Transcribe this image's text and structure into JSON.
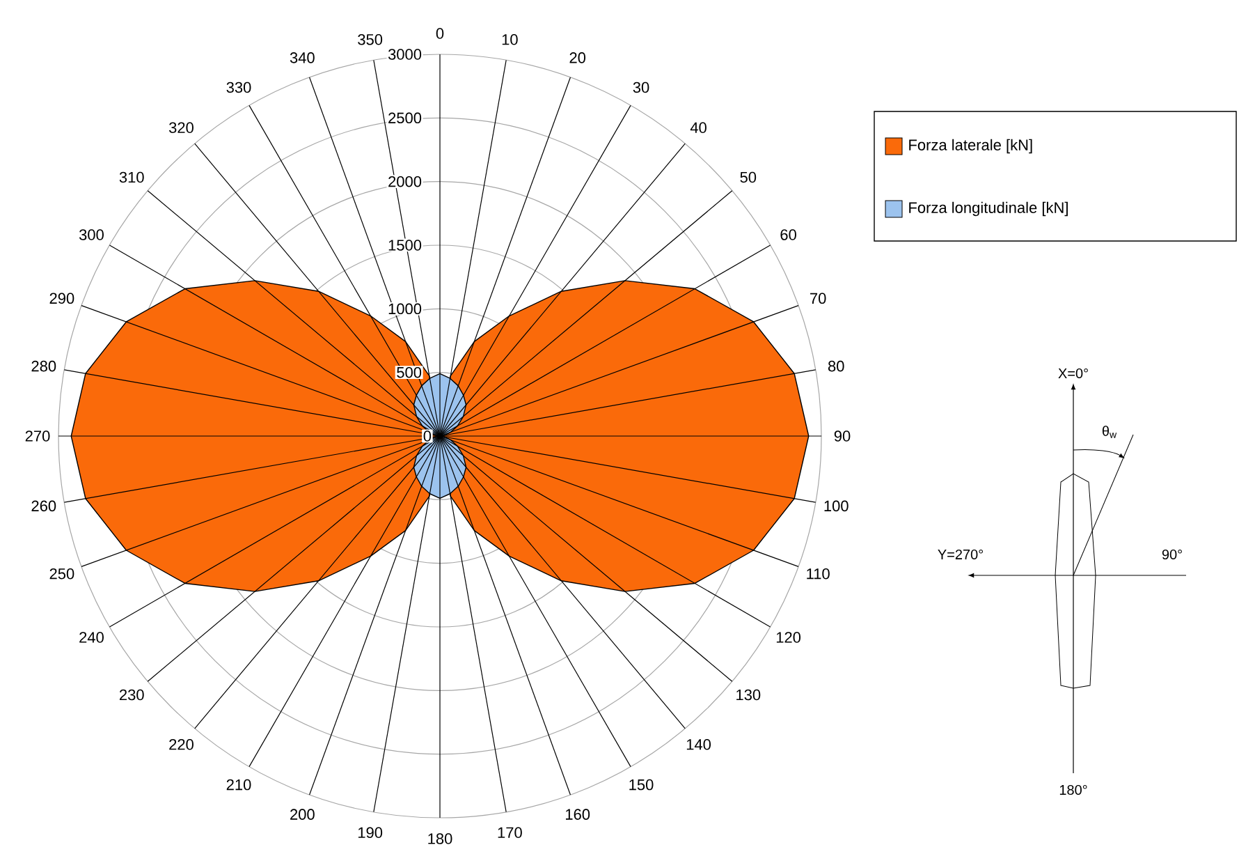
{
  "chart_data": {
    "type": "radar",
    "categories": [
      "0",
      "10",
      "20",
      "30",
      "40",
      "50",
      "60",
      "70",
      "80",
      "90",
      "100",
      "110",
      "120",
      "130",
      "140",
      "150",
      "160",
      "170",
      "180",
      "190",
      "200",
      "210",
      "220",
      "230",
      "240",
      "250",
      "260",
      "270",
      "280",
      "290",
      "300",
      "310",
      "320",
      "330",
      "340",
      "350"
    ],
    "series": [
      {
        "name": "Forza laterale [kN]",
        "color": "#fa6a0a",
        "values": [
          0,
          480,
          790,
          1090,
          1485,
          1900,
          2315,
          2625,
          2830,
          2900,
          2830,
          2625,
          2315,
          1900,
          1485,
          1090,
          790,
          480,
          0,
          480,
          790,
          1090,
          1485,
          1900,
          2315,
          2625,
          2830,
          2900,
          2830,
          2625,
          2315,
          1900,
          1485,
          1090,
          790,
          480
        ]
      },
      {
        "name": "Forza longitudinale [kN]",
        "color": "#9cc3ee",
        "values": [
          490,
          460,
          420,
          370,
          320,
          240,
          160,
          90,
          40,
          0,
          40,
          90,
          160,
          240,
          320,
          370,
          420,
          460,
          490,
          460,
          420,
          370,
          320,
          240,
          160,
          90,
          40,
          0,
          40,
          90,
          160,
          240,
          320,
          370,
          420,
          460
        ]
      }
    ],
    "ylim": [
      0,
      3000
    ],
    "yticks": [
      0,
      500,
      1000,
      1500,
      2000,
      2500,
      3000
    ],
    "grid": true,
    "legend": "top right",
    "annotations": [
      "X=0°",
      "Y=270°",
      "90°",
      "180°",
      "θ$_{w}$"
    ]
  }
}
